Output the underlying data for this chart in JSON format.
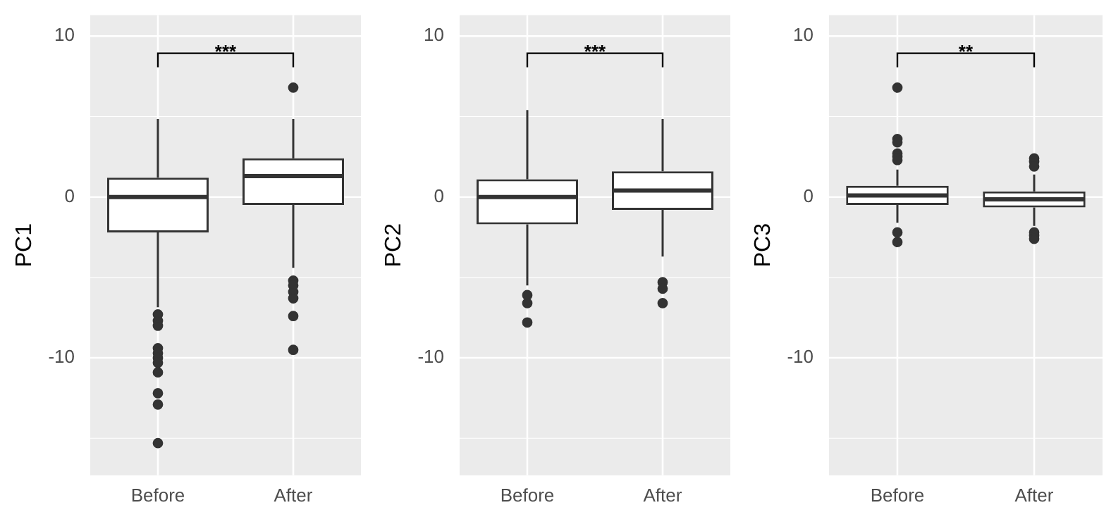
{
  "chart_data": [
    {
      "type": "box",
      "categories": [
        "Before",
        "After"
      ],
      "ylabel": "PC1",
      "ylim": [
        -17.3,
        11.3
      ],
      "yticks": [
        -10,
        0,
        10
      ],
      "grid": true,
      "annotations": [
        "***"
      ],
      "boxes": [
        {
          "low": -6.85,
          "q1": -2.2,
          "median": 0,
          "q3": 1.2,
          "high": 4.85,
          "outliers": [
            -7.3,
            -7.7,
            -8.0,
            -9.4,
            -9.7,
            -10.0,
            -10.3,
            -10.9,
            -12.2,
            -12.9,
            -15.3
          ]
        },
        {
          "low": -4.4,
          "q1": -0.5,
          "median": 1.3,
          "q3": 2.4,
          "high": 4.85,
          "outliers": [
            6.8,
            -5.2,
            -5.5,
            -5.9,
            -6.3,
            -7.4,
            -9.5
          ]
        }
      ]
    },
    {
      "type": "box",
      "categories": [
        "Before",
        "After"
      ],
      "ylabel": "PC2",
      "ylim": [
        -17.3,
        11.3
      ],
      "yticks": [
        -10,
        0,
        10
      ],
      "grid": true,
      "annotations": [
        "***"
      ],
      "boxes": [
        {
          "low": -5.5,
          "q1": -1.7,
          "median": 0,
          "q3": 1.1,
          "high": 5.4,
          "outliers": [
            -6.1,
            -6.6,
            -7.8
          ]
        },
        {
          "low": -3.7,
          "q1": -0.8,
          "median": 0.4,
          "q3": 1.6,
          "high": 4.85,
          "outliers": [
            -5.3,
            -5.7,
            -6.6
          ]
        }
      ]
    },
    {
      "type": "box",
      "categories": [
        "Before",
        "After"
      ],
      "ylabel": "PC3",
      "ylim": [
        -17.3,
        11.3
      ],
      "yticks": [
        -10,
        0,
        10
      ],
      "grid": true,
      "annotations": [
        "**"
      ],
      "boxes": [
        {
          "low": -1.6,
          "q1": -0.5,
          "median": 0.1,
          "q3": 0.7,
          "high": 1.7,
          "outliers": [
            6.8,
            3.6,
            3.4,
            2.7,
            2.5,
            2.3,
            -2.2,
            -2.8
          ]
        },
        {
          "low": -1.8,
          "q1": -0.65,
          "median": -0.15,
          "q3": 0.35,
          "high": 1.4,
          "outliers": [
            2.4,
            2.2,
            1.9,
            -2.2,
            -2.4,
            -2.6
          ]
        }
      ]
    }
  ]
}
